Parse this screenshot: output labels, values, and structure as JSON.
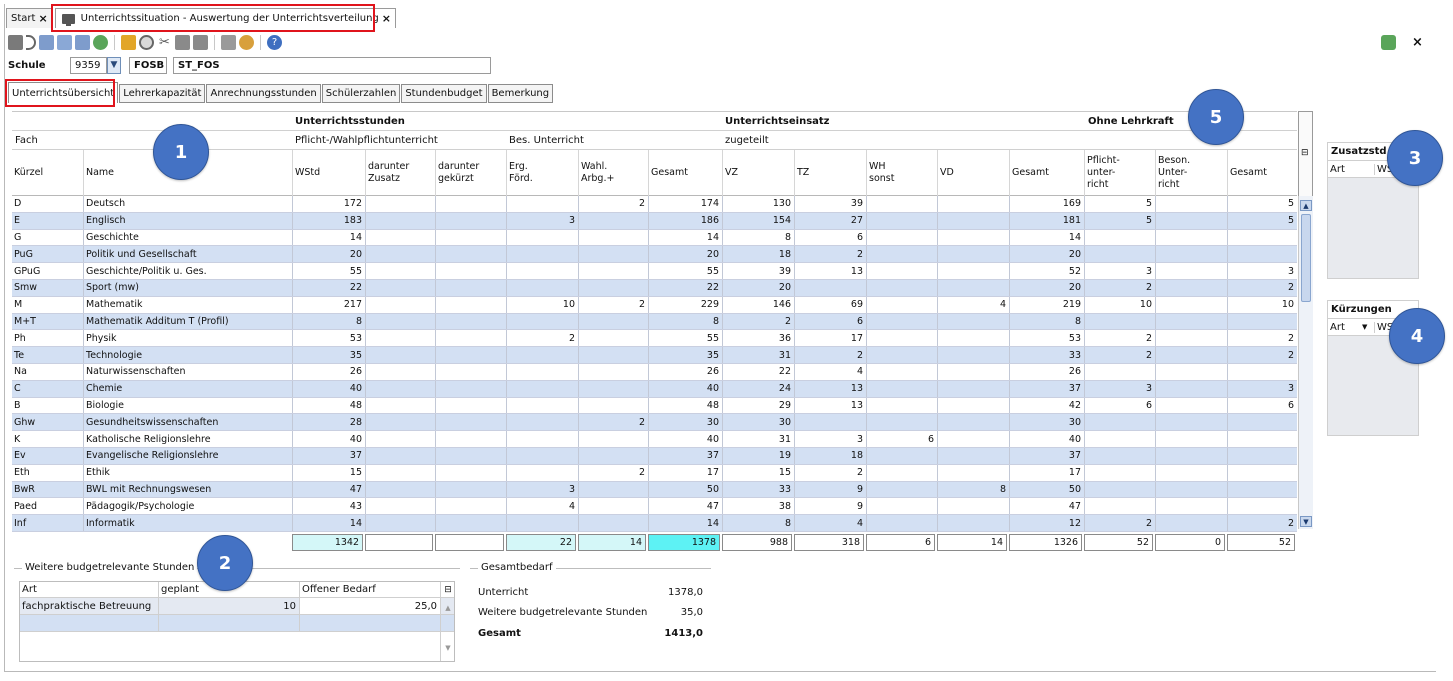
{
  "tabs": {
    "start": "Start",
    "active": "Unterrichtssituation - Auswertung der Unterrichtsverteilung"
  },
  "school": {
    "label": "Schule",
    "number": "9359",
    "type": "FOSB",
    "name": "ST_FOS"
  },
  "subtabs": [
    "Unterrichtsübersicht",
    "Lehrerkapazität",
    "Anrechnungsstunden",
    "Schülerzahlen",
    "Stundenbudget",
    "Bemerkung"
  ],
  "grid": {
    "group1": "Unterrichtsstunden",
    "group2": "Unterrichtseinsatz",
    "group3": "Ohne Lehrkraft",
    "fach": "Fach",
    "pflicht": "Pflicht-/Wahlpflichtunterricht",
    "bes": "Bes. Unterricht",
    "zugeteilt": "zugeteilt",
    "columns": [
      "Kürzel",
      "Name",
      "WStd",
      "darunter\nZusatz",
      "darunter\ngekürzt",
      "Erg.\nFörd.",
      "Wahl.\nArbg.+",
      "Gesamt",
      "VZ",
      "TZ",
      "WH\nsonst",
      "VD",
      "Gesamt",
      "Pflicht-\nunter-\nricht",
      "Beson.\nUnter-\nricht",
      "Gesamt"
    ],
    "rows": [
      [
        "D",
        "Deutsch",
        "172",
        "",
        "",
        "",
        "2",
        "174",
        "130",
        "39",
        "",
        "",
        "169",
        "5",
        "",
        "5"
      ],
      [
        "E",
        "Englisch",
        "183",
        "",
        "",
        "3",
        "",
        "186",
        "154",
        "27",
        "",
        "",
        "181",
        "5",
        "",
        "5"
      ],
      [
        "G",
        "Geschichte",
        "14",
        "",
        "",
        "",
        "",
        "14",
        "8",
        "6",
        "",
        "",
        "14",
        "",
        "",
        ""
      ],
      [
        "PuG",
        "Politik und Gesellschaft",
        "20",
        "",
        "",
        "",
        "",
        "20",
        "18",
        "2",
        "",
        "",
        "20",
        "",
        "",
        ""
      ],
      [
        "GPuG",
        "Geschichte/Politik u. Ges.",
        "55",
        "",
        "",
        "",
        "",
        "55",
        "39",
        "13",
        "",
        "",
        "52",
        "3",
        "",
        "3"
      ],
      [
        "Smw",
        "Sport (mw)",
        "22",
        "",
        "",
        "",
        "",
        "22",
        "20",
        "",
        "",
        "",
        "20",
        "2",
        "",
        "2"
      ],
      [
        "M",
        "Mathematik",
        "217",
        "",
        "",
        "10",
        "2",
        "229",
        "146",
        "69",
        "",
        "4",
        "219",
        "10",
        "",
        "10"
      ],
      [
        "M+T",
        "Mathematik Additum T (Profil)",
        "8",
        "",
        "",
        "",
        "",
        "8",
        "2",
        "6",
        "",
        "",
        "8",
        "",
        "",
        ""
      ],
      [
        "Ph",
        "Physik",
        "53",
        "",
        "",
        "2",
        "",
        "55",
        "36",
        "17",
        "",
        "",
        "53",
        "2",
        "",
        "2"
      ],
      [
        "Te",
        "Technologie",
        "35",
        "",
        "",
        "",
        "",
        "35",
        "31",
        "2",
        "",
        "",
        "33",
        "2",
        "",
        "2"
      ],
      [
        "Na",
        "Naturwissenschaften",
        "26",
        "",
        "",
        "",
        "",
        "26",
        "22",
        "4",
        "",
        "",
        "26",
        "",
        "",
        ""
      ],
      [
        "C",
        "Chemie",
        "40",
        "",
        "",
        "",
        "",
        "40",
        "24",
        "13",
        "",
        "",
        "37",
        "3",
        "",
        "3"
      ],
      [
        "B",
        "Biologie",
        "48",
        "",
        "",
        "",
        "",
        "48",
        "29",
        "13",
        "",
        "",
        "42",
        "6",
        "",
        "6"
      ],
      [
        "Ghw",
        "Gesundheitswissenschaften",
        "28",
        "",
        "",
        "",
        "2",
        "30",
        "30",
        "",
        "",
        "",
        "30",
        "",
        "",
        ""
      ],
      [
        "K",
        "Katholische Religionslehre",
        "40",
        "",
        "",
        "",
        "",
        "40",
        "31",
        "3",
        "6",
        "",
        "40",
        "",
        "",
        ""
      ],
      [
        "Ev",
        "Evangelische Religionslehre",
        "37",
        "",
        "",
        "",
        "",
        "37",
        "19",
        "18",
        "",
        "",
        "37",
        "",
        "",
        ""
      ],
      [
        "Eth",
        "Ethik",
        "15",
        "",
        "",
        "",
        "2",
        "17",
        "15",
        "2",
        "",
        "",
        "17",
        "",
        "",
        ""
      ],
      [
        "BwR",
        "BWL mit Rechnungswesen",
        "47",
        "",
        "",
        "3",
        "",
        "50",
        "33",
        "9",
        "",
        "8",
        "50",
        "",
        "",
        ""
      ],
      [
        "Paed",
        "Pädagogik/Psychologie",
        "43",
        "",
        "",
        "4",
        "",
        "47",
        "38",
        "9",
        "",
        "",
        "47",
        "",
        "",
        ""
      ],
      [
        "Inf",
        "Informatik",
        "14",
        "",
        "",
        "",
        "",
        "14",
        "8",
        "4",
        "",
        "",
        "12",
        "2",
        "",
        "2"
      ]
    ],
    "totals": [
      "1342",
      "",
      "",
      "22",
      "14",
      "1378",
      "988",
      "318",
      "6",
      "14",
      "1326",
      "52",
      "0",
      "52"
    ]
  },
  "zusatz": {
    "title": "Zusatzstd",
    "col1": "Art",
    "col2": "WSt"
  },
  "kuerzungen": {
    "title": "Kürzungen",
    "col1": "Art",
    "col2": "WS"
  },
  "weitere": {
    "title": "Weitere budgetrelevante Stunden",
    "columns": [
      "Art",
      "geplant",
      "Offener Bedarf"
    ],
    "rows": [
      [
        "fachpraktische Betreuung",
        "10",
        "25,0"
      ]
    ]
  },
  "gesamtbedarf": {
    "title": "Gesamtbedarf",
    "unterricht_label": "Unterricht",
    "unterricht_value": "1378,0",
    "weitere_label": "Weitere budgetrelevante Stunden",
    "weitere_value": "35,0",
    "gesamt_label": "Gesamt",
    "gesamt_value": "1413,0"
  },
  "badges": [
    "1",
    "2",
    "3",
    "4",
    "5"
  ],
  "colors": {
    "accent": "#4472c4",
    "highlight": "#e0141c",
    "row_alt": "#d3e0f3",
    "total_highlight": "#a8f1f3"
  }
}
